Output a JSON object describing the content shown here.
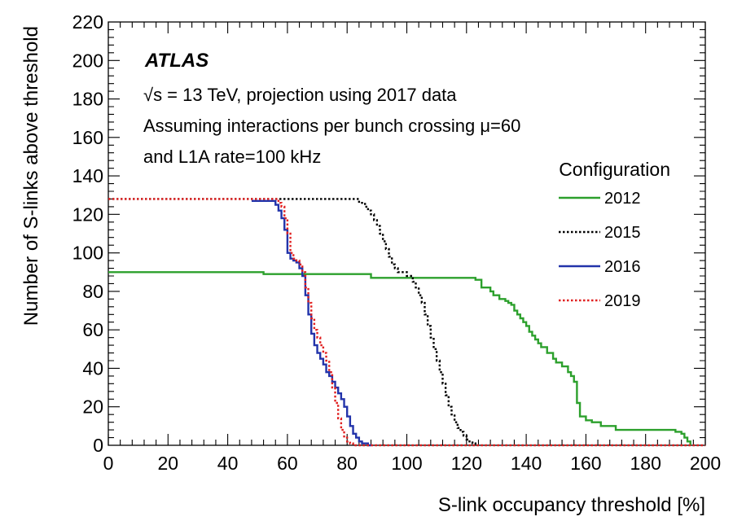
{
  "chart_data": {
    "type": "line",
    "step": true,
    "xlabel": "S-link occupancy threshold [%]",
    "ylabel": "Number of S-links above threshold",
    "xlim": [
      0,
      200
    ],
    "ylim": [
      0,
      220
    ],
    "x_ticks": [
      0,
      20,
      40,
      60,
      80,
      100,
      120,
      140,
      160,
      180,
      200
    ],
    "y_ticks": [
      0,
      20,
      40,
      60,
      80,
      100,
      120,
      140,
      160,
      180,
      200,
      220
    ],
    "grid": false,
    "legend_title": "Configuration",
    "legend_position": "right",
    "annotations": {
      "experiment": "ATLAS",
      "line1": "√s = 13 TeV, projection using 2017 data",
      "line2": "Assuming interactions per bunch crossing  μ=60",
      "line3": "and L1A rate=100 kHz"
    },
    "series": [
      {
        "name": "2012",
        "color": "#2ca02c",
        "dash": "solid",
        "x": [
          0,
          50,
          52,
          80,
          88,
          110,
          123,
          125,
          128,
          129,
          131,
          133,
          134,
          135,
          136,
          137,
          138,
          139,
          140,
          141,
          142,
          143,
          144,
          145,
          147,
          149,
          150,
          152,
          154,
          155,
          156,
          157,
          158,
          160,
          162,
          165,
          170,
          180,
          190,
          192,
          193,
          194,
          195
        ],
        "y": [
          90,
          90,
          89,
          89,
          87,
          87,
          86,
          82,
          80,
          78,
          76,
          75,
          74,
          73,
          70,
          68,
          66,
          64,
          62,
          59,
          57,
          55,
          53,
          51,
          48,
          45,
          43,
          41,
          38,
          36,
          33,
          22,
          15,
          13,
          12,
          10,
          8,
          8,
          7,
          6,
          4,
          2,
          0
        ]
      },
      {
        "name": "2015",
        "color": "#000000",
        "dash": "dotted",
        "x": [
          0,
          80,
          84,
          86,
          87,
          88,
          89,
          90,
          91,
          92,
          93,
          94,
          95,
          96,
          97,
          100,
          102,
          103,
          104,
          105,
          106,
          107,
          108,
          109,
          110,
          111,
          112,
          113,
          114,
          115,
          116,
          117,
          118,
          119,
          120,
          121,
          122,
          123
        ],
        "y": [
          128,
          128,
          126,
          124,
          122,
          120,
          117,
          114,
          110,
          106,
          102,
          98,
          94,
          92,
          90,
          88,
          85,
          82,
          78,
          74,
          68,
          62,
          56,
          50,
          44,
          38,
          32,
          26,
          20,
          16,
          12,
          9,
          7,
          5,
          3,
          2,
          1,
          0
        ]
      },
      {
        "name": "2016",
        "color": "#2233aa",
        "dash": "solid",
        "x": [
          48,
          55,
          56,
          57,
          58,
          59,
          60,
          61,
          62,
          63,
          64,
          65,
          66,
          67,
          68,
          69,
          70,
          71,
          72,
          73,
          74,
          75,
          76,
          77,
          78,
          79,
          80,
          81,
          82,
          83,
          84,
          85,
          86,
          87,
          88
        ],
        "y": [
          127,
          127,
          125,
          122,
          118,
          112,
          100,
          97,
          96,
          95,
          92,
          88,
          78,
          68,
          58,
          52,
          48,
          45,
          42,
          38,
          36,
          33,
          30,
          27,
          24,
          20,
          15,
          10,
          6,
          4,
          2,
          1,
          1,
          0,
          0
        ]
      },
      {
        "name": "2019",
        "color": "#e02020",
        "dash": "dotted",
        "x": [
          0,
          55,
          57,
          58,
          59,
          60,
          61,
          62,
          63,
          64,
          65,
          66,
          67,
          68,
          69,
          70,
          71,
          72,
          73,
          74,
          75,
          76,
          77,
          78,
          79,
          80,
          81,
          82,
          200
        ],
        "y": [
          128,
          128,
          126,
          124,
          118,
          110,
          100,
          97,
          96,
          94,
          90,
          82,
          74,
          66,
          60,
          56,
          52,
          48,
          44,
          38,
          30,
          22,
          14,
          8,
          4,
          2,
          1,
          0,
          0
        ]
      }
    ]
  }
}
